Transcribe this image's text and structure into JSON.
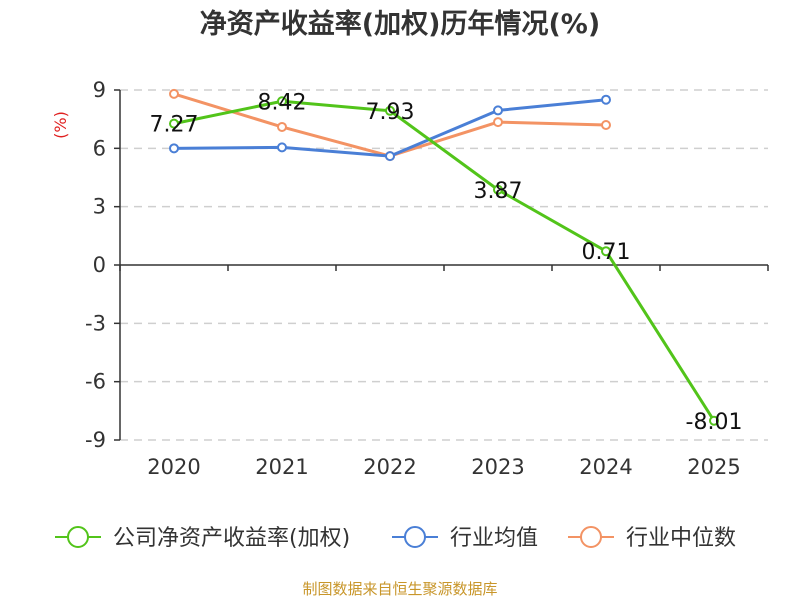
{
  "chart_data": {
    "type": "line",
    "title": "净资产收益率(加权)历年情况(%)",
    "ylabel": "(%)",
    "xlabel": "",
    "categories": [
      "2020",
      "2021",
      "2022",
      "2023",
      "2024",
      "2025"
    ],
    "ylim": [
      -9,
      9
    ],
    "yticks": [
      9,
      6,
      3,
      0,
      -3,
      -6,
      -9
    ],
    "yticks_labels": [
      "9",
      "6",
      "3",
      "0",
      "-3",
      "-6",
      "-9"
    ],
    "grid": true,
    "legend_position": "bottom",
    "series": [
      {
        "name": "公司净资产收益率(加权)",
        "color": "#52c41a",
        "values": [
          7.27,
          8.42,
          7.93,
          3.87,
          0.71,
          -8.01
        ],
        "labels": [
          "7.27",
          "8.42",
          "7.93",
          "3.87",
          "0.71",
          "-8.01"
        ],
        "show_labels": true
      },
      {
        "name": "行业均值",
        "color": "#4a7fd6",
        "values": [
          6.0,
          6.05,
          5.6,
          7.95,
          8.5,
          null
        ],
        "show_labels": false
      },
      {
        "name": "行业中位数",
        "color": "#f39364",
        "values": [
          8.8,
          7.1,
          5.6,
          7.35,
          7.2,
          null
        ],
        "show_labels": false
      }
    ]
  },
  "source": "制图数据来自恒生聚源数据库"
}
